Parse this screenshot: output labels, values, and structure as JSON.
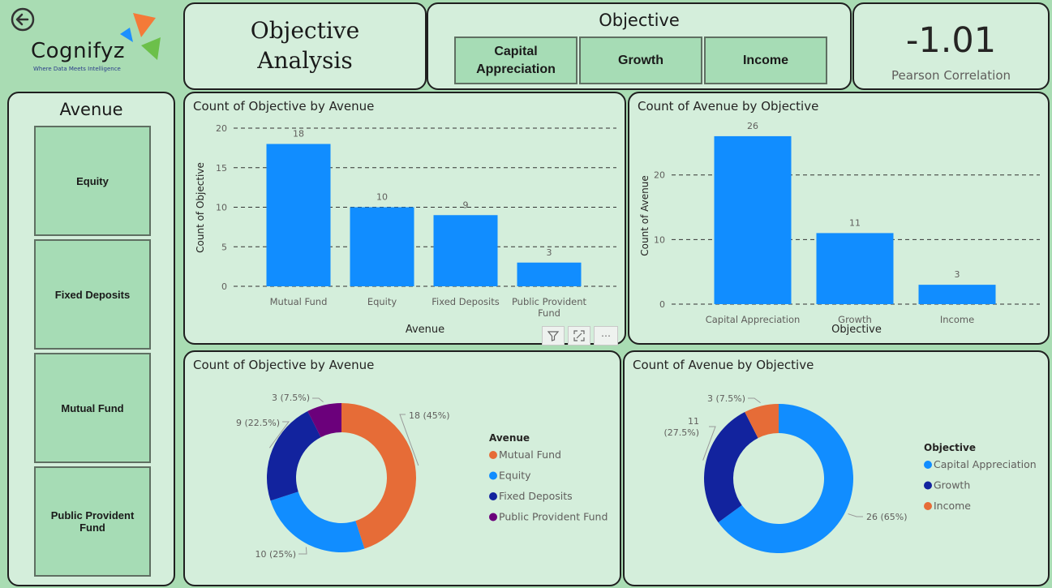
{
  "logo": {
    "name": "Cognifyz",
    "tagline": "Where Data Meets Intelligence"
  },
  "title": {
    "line1": "Objective",
    "line2": "Analysis"
  },
  "objective_slicer": {
    "title": "Objective",
    "options": [
      "Capital\nAppreciation",
      "Growth",
      "Income"
    ]
  },
  "kpi": {
    "value": "-1.01",
    "label": "Pearson Correlation"
  },
  "avenue_slicer": {
    "title": "Avenue",
    "options": [
      "Equity",
      "Fixed Deposits",
      "Mutual Fund",
      "Public Provident\nFund"
    ]
  },
  "colors": {
    "bar": "#118dff",
    "mutual_fund": "#e66c37",
    "equity": "#118dff",
    "fixed_deposits": "#12239e",
    "ppf": "#6b007b",
    "capital_appreciation": "#118dff",
    "growth": "#12239e",
    "income": "#e66c37"
  },
  "chart_data": [
    {
      "type": "bar",
      "title": "Count of Objective by Avenue",
      "xlabel": "Avenue",
      "ylabel": "Count of Objective",
      "categories": [
        "Mutual Fund",
        "Equity",
        "Fixed Deposits",
        "Public Provident\nFund"
      ],
      "values": [
        18,
        10,
        9,
        3
      ],
      "data_labels": [
        "18",
        "10",
        "9",
        "3"
      ],
      "yticks": [
        "0",
        "5",
        "10",
        "15",
        "20"
      ],
      "ylim": [
        0,
        20
      ]
    },
    {
      "type": "bar",
      "title": "Count of Avenue by Objective",
      "xlabel": "Objective",
      "ylabel": "Count of Avenue",
      "categories": [
        "Capital Appreciation",
        "Growth",
        "Income"
      ],
      "values": [
        26,
        11,
        3
      ],
      "data_labels": [
        "26",
        "11",
        "3"
      ],
      "yticks": [
        "0",
        "10",
        "20"
      ],
      "ylim": [
        0,
        28
      ]
    },
    {
      "type": "pie",
      "title": "Count of Objective by Avenue",
      "legend_title": "Avenue",
      "labels": [
        "Mutual Fund",
        "Equity",
        "Fixed Deposits",
        "Public Provident Fund"
      ],
      "values": [
        18,
        10,
        9,
        3
      ],
      "data_labels": [
        "18 (45%)",
        "10 (25%)",
        "9 (22.5%)",
        "3 (7.5%)"
      ],
      "colors": [
        "#e66c37",
        "#118dff",
        "#12239e",
        "#6b007b"
      ]
    },
    {
      "type": "pie",
      "title": "Count of Avenue by Objective",
      "legend_title": "Objective",
      "labels": [
        "Capital Appreciation",
        "Growth",
        "Income"
      ],
      "values": [
        26,
        11,
        3
      ],
      "data_labels": [
        "26 (65%)",
        "11\n(27.5%)",
        "3 (7.5%)"
      ],
      "colors": [
        "#118dff",
        "#12239e",
        "#e66c37"
      ]
    }
  ]
}
